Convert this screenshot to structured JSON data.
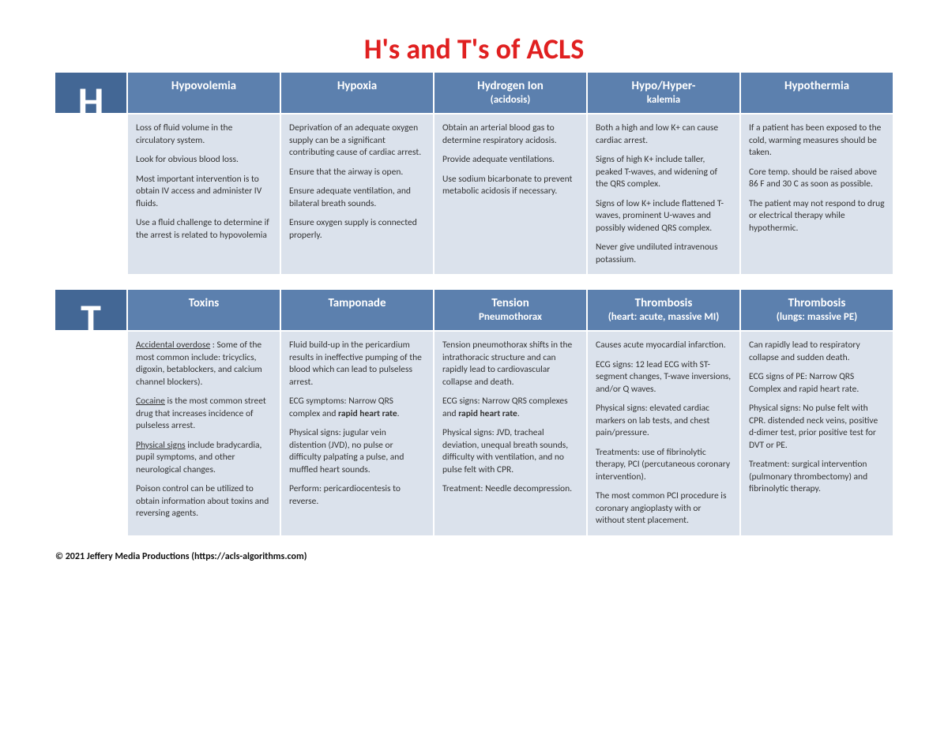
{
  "colors": {
    "title": "#e02020",
    "letter_bg": "#436795",
    "header_bg": "#5c80ae",
    "cell_bg": "#dbe2ec",
    "letter_text": "#ffffff",
    "header_text": "#ffffff",
    "body_text": "#333333"
  },
  "title": "H's and T's of ACLS",
  "sections": [
    {
      "letter": "H",
      "columns": [
        {
          "header": "Hypovolemia",
          "sub": ""
        },
        {
          "header": "Hypoxia",
          "sub": ""
        },
        {
          "header": "Hydrogen Ion",
          "sub": "(acidosis)"
        },
        {
          "header": "Hypo/Hyper-",
          "sub": "kalemia"
        },
        {
          "header": "Hypothermia",
          "sub": ""
        }
      ],
      "cells": [
        [
          "Loss of fluid volume in the circulatory system.",
          "Look for obvious blood loss.",
          "Most important intervention is to obtain IV access and administer IV fluids.",
          "Use a fluid challenge to determine if the arrest is related to hypovolemia"
        ],
        [
          "Deprivation of an adequate oxygen supply can be a significant contributing cause of cardiac arrest.",
          "Ensure that the airway is open.",
          "Ensure adequate ventilation, and bilateral breath sounds.",
          "Ensure oxygen supply is connected properly."
        ],
        [
          "Obtain an arterial blood gas to determine respiratory acidosis.",
          "Provide adequate ventilations.",
          "Use sodium bicarbonate to prevent metabolic acidosis if necessary."
        ],
        [
          "Both a high and low K+ can cause cardiac arrest.",
          "Signs of high K+ include taller, peaked T-waves, and widening of the QRS complex.",
          "Signs of low K+ include flattened T-waves, prominent U-waves and possibly widened QRS complex.",
          "Never give undiluted intravenous potassium."
        ],
        [
          "If a patient has been exposed to the cold, warming measures should be taken.",
          "Core temp. should be raised above 86 F and 30 C as soon as possible.",
          "The patient may not respond to drug or electrical therapy while hypothermic."
        ]
      ]
    },
    {
      "letter": "T",
      "columns": [
        {
          "header": "Toxins",
          "sub": ""
        },
        {
          "header": "Tamponade",
          "sub": ""
        },
        {
          "header": "Tension",
          "sub": "Pneumothorax"
        },
        {
          "header": "Thrombosis",
          "sub": "(heart: acute, massive MI)"
        },
        {
          "header": "Thrombosis",
          "sub": "(lungs: massive PE)"
        }
      ],
      "cells_html": [
        [
          "<span class='u'>Accidental overdose</span> :  Some of the most common include: tricyclics, digoxin, betablockers, and calcium channel blockers).",
          "<span class='u'>Cocaine</span> is the most common street drug that increases incidence of pulseless arrest.",
          "<span class='u'>Physical signs</span> include bradycardia, pupil symptoms, and other neurological changes.",
          "Poison control can be utilized to obtain information about toxins and reversing agents."
        ],
        [
          "Fluid build-up in the pericardium results in ineffective pumping of the blood which can lead to pulseless arrest.",
          "ECG symptoms: Narrow QRS complex and <b>rapid heart rate</b>.",
          "Physical signs:  jugular vein distention (JVD), no pulse or difficulty palpating a pulse, and muffled heart sounds.",
          "Perform: pericardiocentesis to reverse."
        ],
        [
          "Tension pneumothorax shifts in the intrathoracic structure and can rapidly lead to cardiovascular collapse and death.",
          " ECG signs:  Narrow QRS complexes and <b>rapid heart rate</b>.",
          "Physical signs: JVD, tracheal deviation, unequal breath sounds, difficulty with ventilation, and no pulse felt with CPR.",
          "Treatment:  Needle decompression."
        ],
        [
          "Causes acute myocardial infarction.",
          "ECG signs:  12 lead ECG with ST-segment changes, T-wave inversions, and/or Q waves.",
          "Physical signs: elevated cardiac markers on lab tests, and chest pain/pressure.",
          "Treatments:  use of fibrinolytic therapy, PCI (percutaneous coronary intervention).",
          "The most common PCI procedure is coronary angioplasty with or without stent placement."
        ],
        [
          "Can rapidly lead to respiratory collapse and sudden death.",
          "ECG signs of PE:  Narrow QRS Complex and rapid heart rate.",
          "Physical signs: No pulse felt with CPR. distended neck veins, positive d-dimer test, prior positive test for DVT or PE.",
          "Treatment: surgical intervention (pulmonary thrombectomy) and fibrinolytic therapy."
        ]
      ]
    }
  ],
  "footer": "©  2021   Jeffery Media Productions (https://acls-algorithms.com)"
}
